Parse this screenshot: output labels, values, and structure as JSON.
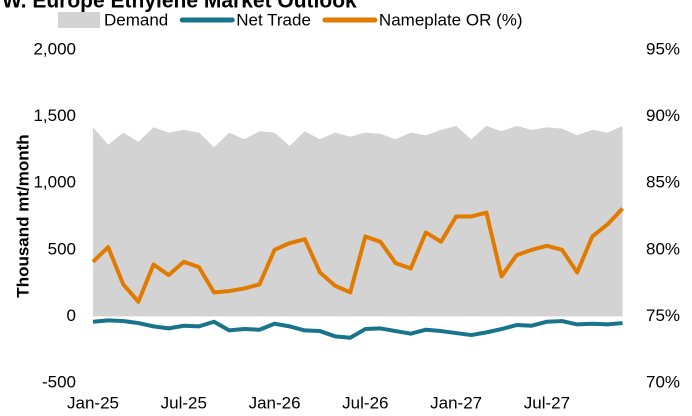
{
  "chart_data": {
    "type": "line",
    "title": "W. Europe Ethylene Market Outlook",
    "y_label": "Thousand mt/month",
    "categories": [
      "Jan-25",
      null,
      null,
      null,
      null,
      null,
      "Jul-25",
      null,
      null,
      null,
      null,
      null,
      "Jan-26",
      null,
      null,
      null,
      null,
      null,
      "Jul-26",
      null,
      null,
      null,
      null,
      null,
      "Jan-27",
      null,
      null,
      null,
      null,
      null,
      "Jul-27",
      null,
      null,
      null,
      null,
      null
    ],
    "ylim": [
      -500,
      2000
    ],
    "yticks": [
      -500,
      0,
      500,
      {
        "value": 1000,
        "label": "1,000"
      },
      {
        "value": 1500,
        "label": "1,500"
      },
      {
        "value": 2000,
        "label": "2,000"
      }
    ],
    "y2lim": [
      70,
      95
    ],
    "y2ticks": [
      {
        "value": 70,
        "label": "70%"
      },
      {
        "value": 75,
        "label": "75%"
      },
      {
        "value": 80,
        "label": "80%"
      },
      {
        "value": 85,
        "label": "85%"
      },
      {
        "value": 90,
        "label": "90%"
      },
      {
        "value": 95,
        "label": "95%"
      }
    ],
    "series": [
      {
        "name": "Demand",
        "kind": "area",
        "color": "#d3d3d3",
        "values": [
          1420,
          1290,
          1380,
          1310,
          1420,
          1380,
          1400,
          1380,
          1270,
          1380,
          1330,
          1390,
          1380,
          1280,
          1390,
          1330,
          1380,
          1350,
          1380,
          1370,
          1330,
          1380,
          1360,
          1400,
          1430,
          1330,
          1430,
          1390,
          1430,
          1400,
          1420,
          1410,
          1360,
          1400,
          1380,
          1430
        ]
      },
      {
        "name": "Net Trade",
        "kind": "line",
        "color": "#17748a",
        "values": [
          -40,
          -30,
          -35,
          -50,
          -75,
          -90,
          -70,
          -75,
          -40,
          -105,
          -95,
          -100,
          -55,
          -75,
          -105,
          -110,
          -150,
          -160,
          -95,
          -90,
          -110,
          -130,
          -100,
          -110,
          -125,
          -140,
          -120,
          -95,
          -65,
          -70,
          -40,
          -35,
          -60,
          -55,
          -60,
          -50
        ]
      },
      {
        "name": "Nameplate OR (%)",
        "kind": "line",
        "axis": "y2",
        "color": "#e07b00",
        "values": [
          79.1,
          80.2,
          77.4,
          76.1,
          78.9,
          78.1,
          79.1,
          78.7,
          76.8,
          76.9,
          77.1,
          77.4,
          80.0,
          80.5,
          80.8,
          78.3,
          77.3,
          76.8,
          81.0,
          80.6,
          79.0,
          78.6,
          81.3,
          80.6,
          82.5,
          82.5,
          82.8,
          78.0,
          79.6,
          80.0,
          80.3,
          80.0,
          78.3,
          81.0,
          81.9,
          83.1
        ]
      }
    ]
  }
}
